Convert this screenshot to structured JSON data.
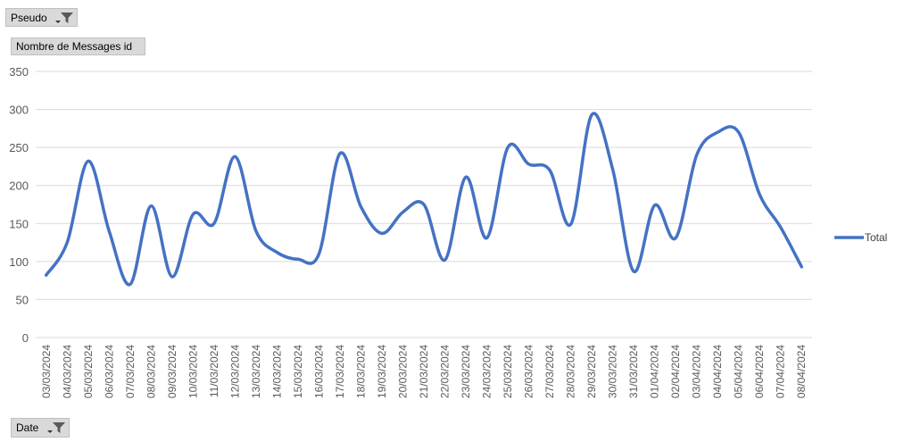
{
  "filters": {
    "report_filter": {
      "label": "Pseudo",
      "icon": "filter-icon",
      "dropdown_icon": "dropdown-arrow-icon"
    },
    "values_field": {
      "label": "Nombre de Messages id"
    },
    "axis_field": {
      "label": "Date",
      "icon": "filter-icon",
      "dropdown_icon": "dropdown-arrow-icon"
    }
  },
  "chart_data": {
    "type": "line",
    "smooth": true,
    "categories": [
      "03/03/2024",
      "04/03/2024",
      "05/03/2024",
      "06/03/2024",
      "07/03/2024",
      "08/03/2024",
      "09/03/2024",
      "10/03/2024",
      "11/03/2024",
      "12/03/2024",
      "13/03/2024",
      "14/03/2024",
      "15/03/2024",
      "16/03/2024",
      "17/03/2024",
      "18/03/2024",
      "19/03/2024",
      "20/03/2024",
      "21/03/2024",
      "22/03/2024",
      "23/03/2024",
      "24/03/2024",
      "25/03/2024",
      "26/03/2024",
      "27/03/2024",
      "28/03/2024",
      "29/03/2024",
      "30/03/2024",
      "31/03/2024",
      "01/04/2024",
      "02/04/2024",
      "03/04/2024",
      "04/04/2024",
      "05/04/2024",
      "06/04/2024",
      "07/04/2024",
      "08/04/2024"
    ],
    "series": [
      {
        "name": "Total",
        "color": "#4472c4",
        "values": [
          82,
          125,
          232,
          140,
          70,
          173,
          80,
          162,
          150,
          238,
          140,
          112,
          103,
          110,
          242,
          172,
          137,
          165,
          175,
          102,
          211,
          131,
          250,
          228,
          220,
          149,
          293,
          221,
          87,
          174,
          131,
          240,
          270,
          270,
          188,
          145,
          93
        ]
      }
    ],
    "ylim": [
      0,
      350
    ],
    "yticks": [
      0,
      50,
      100,
      150,
      200,
      250,
      300,
      350
    ],
    "grid": true,
    "legend_position": "right"
  }
}
